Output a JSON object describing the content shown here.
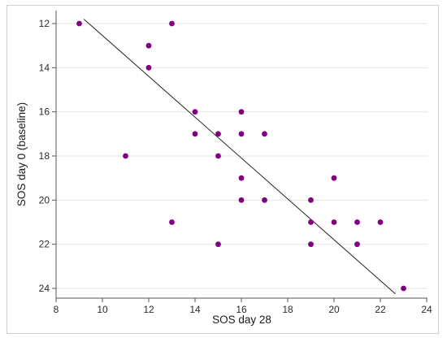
{
  "chart_data": {
    "type": "scatter",
    "xlabel": "SOS day 28",
    "ylabel": "SOS day 0 (baseline)",
    "xlim": [
      8,
      24
    ],
    "ylim": [
      24,
      12
    ],
    "y_axis_inverted": true,
    "x_ticks": [
      "8",
      "10",
      "12",
      "14",
      "16",
      "18",
      "20",
      "22",
      "24"
    ],
    "y_ticks": [
      "12",
      "14",
      "16",
      "18",
      "20",
      "22",
      "24"
    ],
    "grid": "horizontal",
    "point_color": "#800080",
    "line_color": "#222222",
    "points": [
      {
        "x": 9,
        "y": 12
      },
      {
        "x": 13,
        "y": 12
      },
      {
        "x": 12,
        "y": 13
      },
      {
        "x": 12,
        "y": 14
      },
      {
        "x": 14,
        "y": 16
      },
      {
        "x": 16,
        "y": 16
      },
      {
        "x": 14,
        "y": 17
      },
      {
        "x": 15,
        "y": 17
      },
      {
        "x": 16,
        "y": 17
      },
      {
        "x": 17,
        "y": 17
      },
      {
        "x": 11,
        "y": 18
      },
      {
        "x": 15,
        "y": 18
      },
      {
        "x": 16,
        "y": 19
      },
      {
        "x": 20,
        "y": 19
      },
      {
        "x": 16,
        "y": 20
      },
      {
        "x": 17,
        "y": 20
      },
      {
        "x": 19,
        "y": 20
      },
      {
        "x": 13,
        "y": 21
      },
      {
        "x": 19,
        "y": 21
      },
      {
        "x": 20,
        "y": 21
      },
      {
        "x": 21,
        "y": 21
      },
      {
        "x": 22,
        "y": 21
      },
      {
        "x": 15,
        "y": 22
      },
      {
        "x": 19,
        "y": 22
      },
      {
        "x": 21,
        "y": 22
      },
      {
        "x": 23,
        "y": 24
      }
    ],
    "fit_line": {
      "x": [
        9.2,
        22.65
      ],
      "y": [
        11.8,
        24.25
      ]
    }
  }
}
